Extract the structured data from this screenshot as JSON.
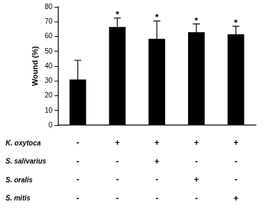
{
  "chart_data": {
    "type": "bar",
    "categories": [
      null,
      null,
      null,
      null,
      null
    ],
    "values": [
      31,
      66.5,
      58.5,
      63,
      61.5
    ],
    "errors": [
      13,
      6,
      12,
      5.5,
      5.5
    ],
    "significance": [
      null,
      "*",
      "*",
      "*",
      "*"
    ],
    "color": "#000000",
    "y_label": "Wound (%)",
    "ylim": [
      0,
      80
    ],
    "yticks": [
      0,
      10,
      20,
      30,
      40,
      50,
      60,
      70,
      80
    ],
    "grid": false,
    "tick_labels": "y",
    "conditions": [
      {
        "name": "K. oxytoca",
        "signs": [
          "-",
          "+",
          "+",
          "+",
          "+"
        ]
      },
      {
        "name": "S. salivarius",
        "signs": [
          "-",
          "-",
          "+",
          "-",
          "-"
        ]
      },
      {
        "name": "S. oralis",
        "signs": [
          "-",
          "-",
          "-",
          "+",
          "-"
        ]
      },
      {
        "name": "S. mitis",
        "signs": [
          "-",
          "-",
          "-",
          "-",
          "+"
        ]
      }
    ]
  }
}
